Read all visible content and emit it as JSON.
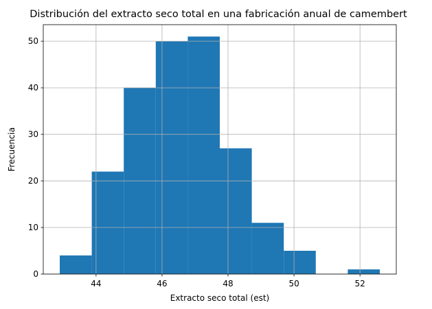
{
  "chart_data": {
    "type": "histogram",
    "title": "Distribución del extracto seco total en una fabricación anual de camembert",
    "xlabel": "Extracto seco total (est)",
    "ylabel": "Frecuencia",
    "bin_edges": [
      42.9,
      43.87,
      44.84,
      45.81,
      46.78,
      47.75,
      48.72,
      49.69,
      50.66,
      51.63,
      52.6
    ],
    "counts": [
      4,
      22,
      40,
      50,
      51,
      27,
      11,
      5,
      0,
      1
    ],
    "xlim": [
      42.4,
      53.1
    ],
    "ylim": [
      0,
      53.55
    ],
    "xticks": [
      44,
      46,
      48,
      50,
      52
    ],
    "yticks": [
      0,
      10,
      20,
      30,
      40,
      50
    ],
    "grid": true,
    "bar_color": "#1f77b4",
    "grid_color": "#b0b0b0"
  }
}
